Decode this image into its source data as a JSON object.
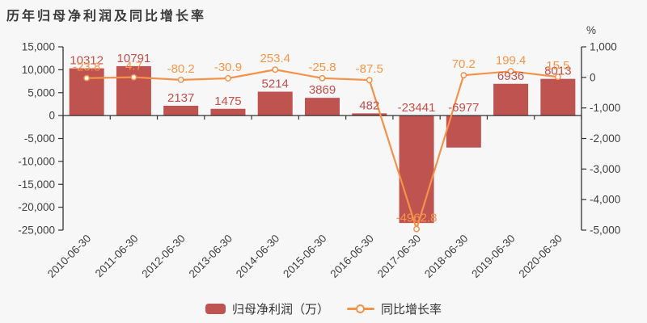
{
  "chart_data": {
    "type": "bar",
    "title": "历年归母净利润及同比增长率",
    "categories": [
      "2010-06-30",
      "2011-06-30",
      "2012-06-30",
      "2013-06-30",
      "2014-06-30",
      "2015-06-30",
      "2016-06-30",
      "2017-06-30",
      "2018-06-30",
      "2019-06-30",
      "2020-06-30"
    ],
    "series": [
      {
        "name": "归母净利润（万）",
        "type": "bar",
        "axis": "left",
        "color": "#bf5350",
        "label_color": "#c4504c",
        "values": [
          10312,
          10791,
          2137,
          1475,
          5214,
          3869,
          482,
          -23441,
          -6977,
          6936,
          8013
        ]
      },
      {
        "name": "同比增长率",
        "type": "line",
        "axis": "right",
        "color": "#f5924a",
        "label_color": "#f7964a",
        "values": [
          -23.8,
          4.7,
          -80.2,
          -30.9,
          253.4,
          -25.8,
          -87.5,
          -4962.8,
          70.2,
          199.4,
          15.5
        ]
      }
    ],
    "left_axis": {
      "min": -25000,
      "max": 15000,
      "ticks": [
        {
          "v": 15000,
          "label": "15,000"
        },
        {
          "v": 10000,
          "label": "10,000"
        },
        {
          "v": 5000,
          "label": "5,000"
        },
        {
          "v": 0,
          "label": "0"
        },
        {
          "v": -5000,
          "label": "-5,000"
        },
        {
          "v": -10000,
          "label": "-10,000"
        },
        {
          "v": -15000,
          "label": "-15,000"
        },
        {
          "v": -20000,
          "label": "-20,000"
        },
        {
          "v": -25000,
          "label": "-25,000"
        }
      ]
    },
    "right_axis": {
      "min": -5000,
      "max": 1000,
      "unit": "%",
      "ticks": [
        {
          "v": 1000,
          "label": "1,000"
        },
        {
          "v": 0,
          "label": "0"
        },
        {
          "v": -1000,
          "label": "-1,000"
        },
        {
          "v": -2000,
          "label": "-2,000"
        },
        {
          "v": -3000,
          "label": "-3,000"
        },
        {
          "v": -4000,
          "label": "-4,000"
        },
        {
          "v": -5000,
          "label": "-5,000"
        }
      ]
    },
    "legend_position": "bottom",
    "grid": false,
    "axis_line_color": "#333333",
    "axis_text_color": "#3f3f3f"
  },
  "legend": {
    "items": [
      {
        "label": "归母净利润（万）",
        "swatch": "bar",
        "color": "#bf5350"
      },
      {
        "label": "同比增长率",
        "swatch": "line",
        "color": "#f5924a"
      }
    ]
  }
}
